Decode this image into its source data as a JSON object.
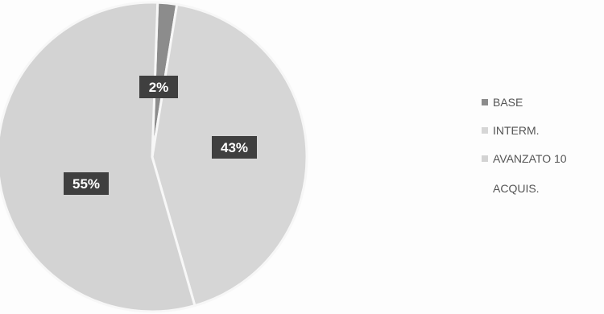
{
  "chart_data": {
    "type": "pie",
    "title": "",
    "series": [
      {
        "values": [
          2,
          43,
          55
        ],
        "labels": [
          "2%",
          "43%",
          "55%"
        ]
      }
    ],
    "categories": [
      "BASE",
      "INTERM.",
      "AVANZATO 10 ACQUIS."
    ],
    "colors": [
      "#8c8c8c",
      "#d6d6d6",
      "#d3d3d3"
    ],
    "legend": "right",
    "data_label_style": "white text on dark boxes"
  }
}
